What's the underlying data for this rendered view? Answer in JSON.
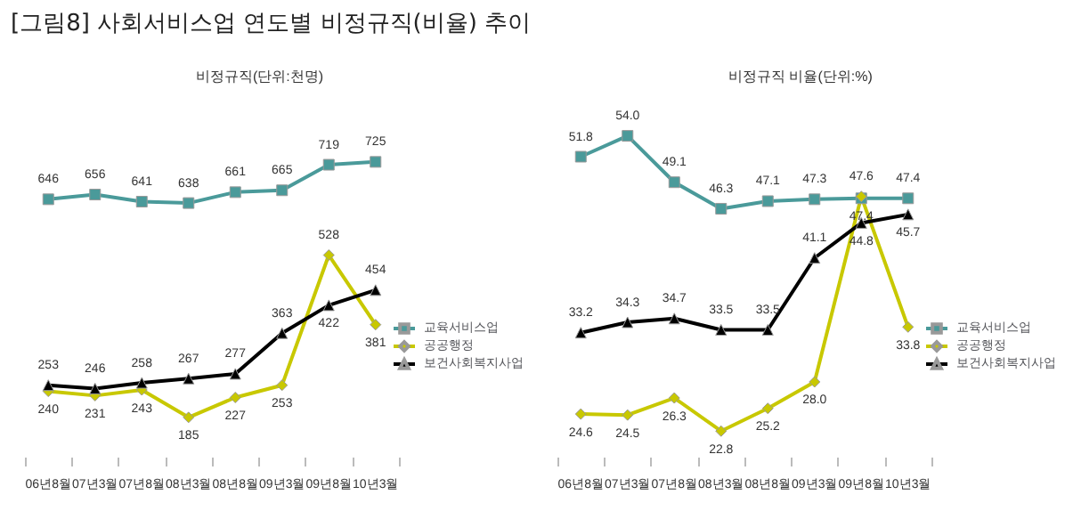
{
  "chart_data": [
    {
      "type": "line",
      "title": "[그림8] 사회서비스업 연도별 비정규직(비율) 추이",
      "subtitle": "비정규직(단위:천명)",
      "categories": [
        "06년8월",
        "07년3월",
        "07년8월",
        "08년3월",
        "08년8월",
        "09년3월",
        "09년8월",
        "10년3월"
      ],
      "series": [
        {
          "name": "교육서비스업",
          "color": "#4a9a9a",
          "marker": "square",
          "values": [
            646,
            656,
            641,
            638,
            661,
            665,
            719,
            725
          ]
        },
        {
          "name": "공공행정",
          "color": "#c8c800",
          "marker": "diamond",
          "values": [
            240,
            231,
            243,
            185,
            227,
            253,
            528,
            381
          ]
        },
        {
          "name": "보건사회복지사업",
          "color": "#000000",
          "marker": "triangle",
          "values": [
            253,
            246,
            258,
            267,
            277,
            363,
            422,
            454
          ]
        }
      ],
      "data_labels": true,
      "legend": "right",
      "grid": false
    },
    {
      "type": "line",
      "title": "비정규직 비율(단위:%)",
      "categories": [
        "06년8월",
        "07년3월",
        "07년8월",
        "08년3월",
        "08년8월",
        "09년3월",
        "09년8월",
        "10년3월"
      ],
      "series": [
        {
          "name": "교육서비스업",
          "color": "#4a9a9a",
          "marker": "square",
          "values": [
            51.8,
            54.0,
            49.1,
            46.3,
            47.1,
            47.3,
            47.4,
            47.4
          ],
          "value_labels": [
            "51.8",
            "54.0",
            "49.1",
            "46.3",
            "47.1",
            "47.3",
            "47.4",
            "47.4"
          ]
        },
        {
          "name": "공공행정",
          "color": "#c8c800",
          "marker": "diamond",
          "values": [
            24.6,
            24.5,
            26.3,
            22.8,
            25.2,
            28.0,
            47.6,
            33.8
          ],
          "value_labels": [
            "24.6",
            "24.5",
            "26.3",
            "22.8",
            "25.2",
            "28.0",
            "47.6",
            "33.8"
          ]
        },
        {
          "name": "보건사회복지사업",
          "color": "#000000",
          "marker": "triangle",
          "values": [
            33.2,
            34.3,
            34.7,
            33.5,
            33.5,
            41.1,
            44.8,
            45.7
          ],
          "value_labels": [
            "33.2",
            "34.3",
            "34.7",
            "33.5",
            "33.5",
            "41.1",
            "44.8",
            "45.7"
          ]
        }
      ],
      "data_labels": true,
      "legend": "right",
      "grid": false
    }
  ]
}
